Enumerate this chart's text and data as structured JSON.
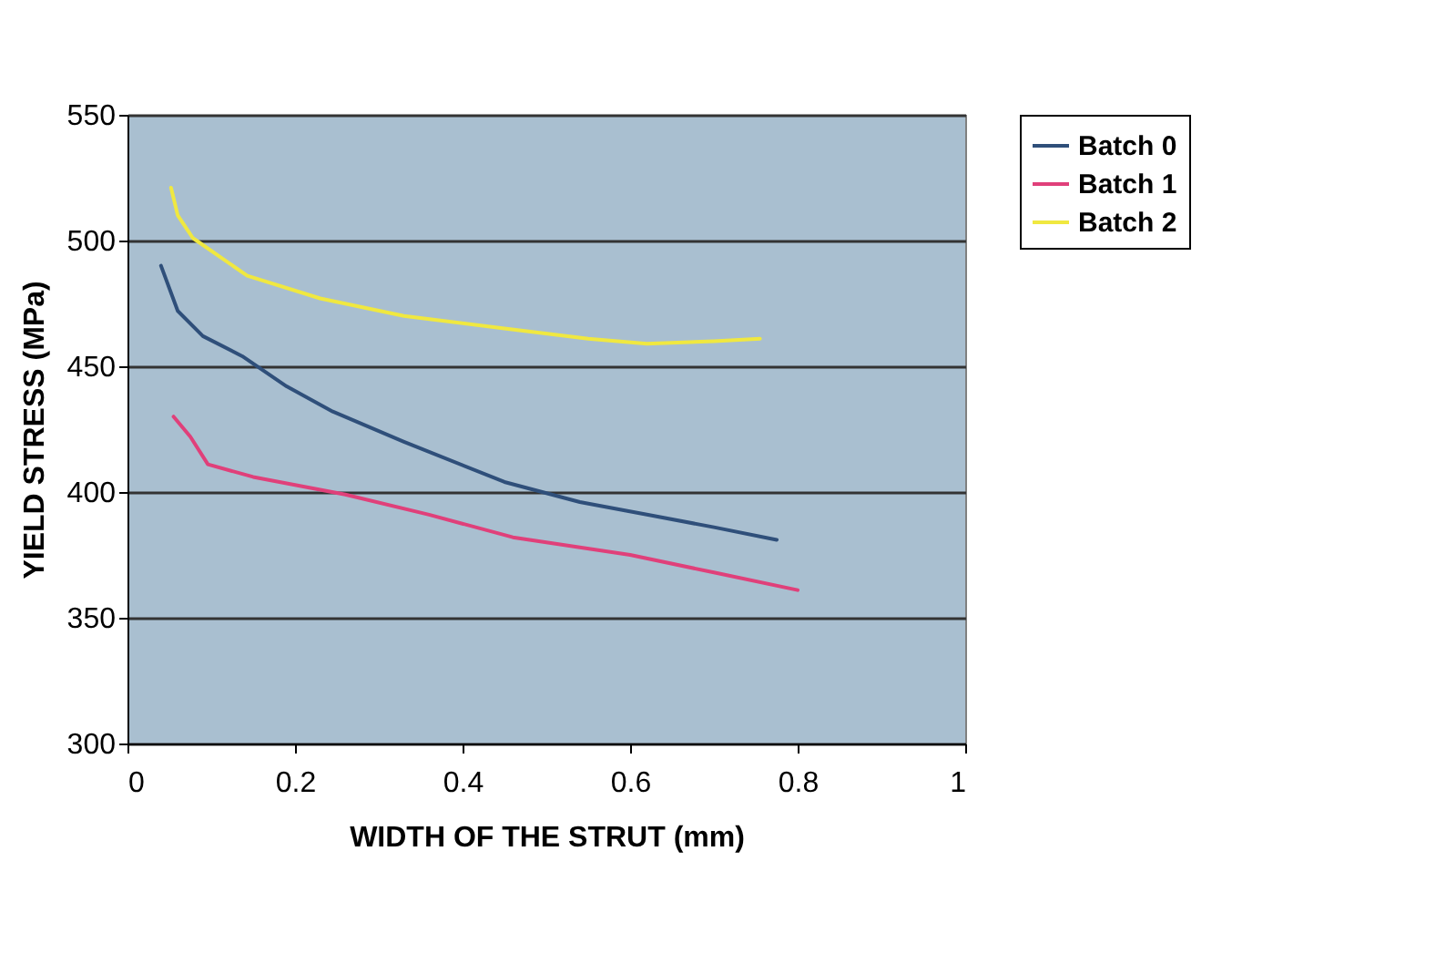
{
  "chart_data": {
    "type": "line",
    "xlabel": "WIDTH OF THE STRUT (mm)",
    "ylabel": "YIELD STRESS (MPa)",
    "xlim": [
      0,
      1
    ],
    "xticks": [
      0,
      0.2,
      0.4,
      0.6,
      0.8,
      1
    ],
    "ylim": [
      300,
      550
    ],
    "yticks": [
      300,
      350,
      400,
      450,
      500,
      550
    ],
    "grid": "y",
    "legend": "right",
    "marker": "none",
    "line_style": "solid",
    "series": [
      {
        "name": "Batch 0",
        "color": "#2f4f7a",
        "x": [
          0.04,
          0.06,
          0.09,
          0.137,
          0.19,
          0.245,
          0.33,
          0.45,
          0.54,
          0.62,
          0.7,
          0.775
        ],
        "values": [
          490,
          472,
          462,
          454,
          442,
          432,
          420,
          404,
          396,
          391,
          386,
          381
        ]
      },
      {
        "name": "Batch 1",
        "color": "#e0407a",
        "x": [
          0.055,
          0.075,
          0.096,
          0.15,
          0.26,
          0.36,
          0.46,
          0.6,
          0.7,
          0.8
        ],
        "values": [
          430,
          422,
          411,
          406,
          399,
          391,
          382,
          375,
          368,
          361
        ]
      },
      {
        "name": "Batch 2",
        "color": "#f0e840",
        "x": [
          0.052,
          0.06,
          0.078,
          0.143,
          0.23,
          0.33,
          0.45,
          0.55,
          0.62,
          0.7,
          0.755
        ],
        "values": [
          521,
          510,
          501,
          486,
          477,
          470,
          465,
          461,
          459,
          460,
          461
        ]
      }
    ]
  }
}
